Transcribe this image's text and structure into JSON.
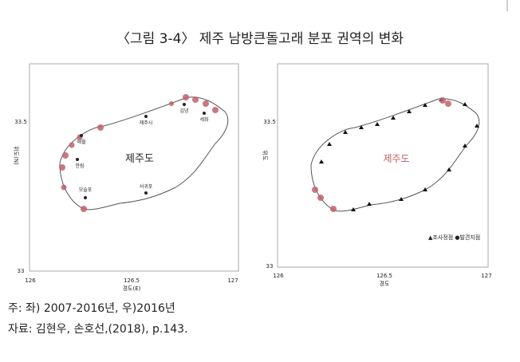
{
  "header": {
    "title": "〈그림 3-4〉 제주 남방큰돌고래 분포 권역의 변화"
  },
  "left_map": {
    "ylabel": "위도(N)",
    "xlabel": "경도(E)",
    "yticks": [
      "33.5",
      "33"
    ],
    "xticks": [
      "126",
      "126.5",
      "127"
    ],
    "island": "제주도",
    "places": [
      "제주시",
      "김녕",
      "세화",
      "애월",
      "한림",
      "모슬포",
      "서귀포"
    ]
  },
  "right_map": {
    "ylabel": "위도",
    "xlabel": "경도",
    "yticks": [
      "33.5",
      "33"
    ],
    "xticks": [
      "126",
      "126.5",
      "127"
    ],
    "island": "제주도",
    "legend": "▲조사정점 ●발견지점"
  },
  "notes": [
    "주: 좌) 2007-2016년, 우)2016년",
    "자료: 김현우, 손호선,(2018), p.143."
  ]
}
